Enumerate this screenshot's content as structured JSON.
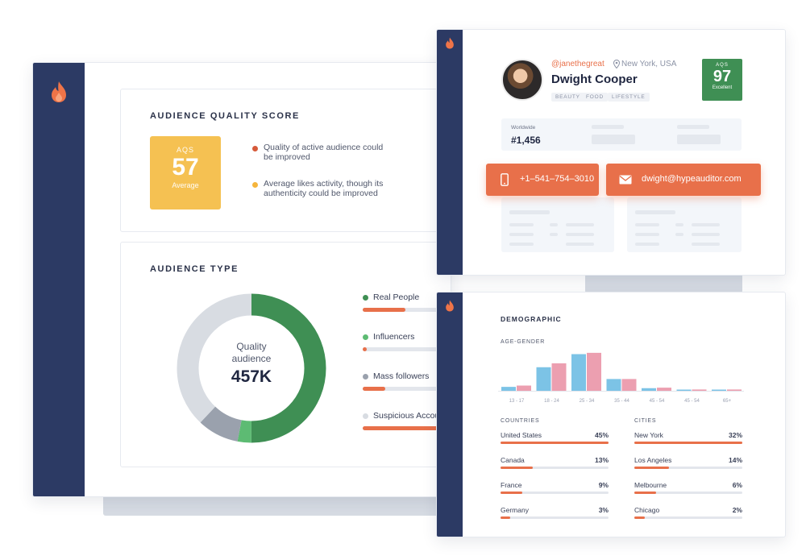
{
  "colors": {
    "sidebar": "#2c3a64",
    "accent_orange": "#e8704a",
    "aqs_yellow": "#f5c152",
    "aqs_green": "#3f8f54",
    "real_people": "#3f8f54",
    "influencers": "#5dbb73",
    "mass_followers": "#9aa1ad",
    "suspicious": "#d8dce2",
    "male_bar": "#7cc3e6",
    "female_bar": "#ec9fb0"
  },
  "quality": {
    "title": "AUDIENCE QUALITY SCORE",
    "aqs_label": "AQS",
    "aqs_value": "57",
    "aqs_grade": "Average",
    "bullets": [
      {
        "text": "Quality of active audience could be improved",
        "color": "#d65a3a"
      },
      {
        "text": "Average likes activity, though its authenticity could be improved",
        "color": "#f5b53c"
      }
    ]
  },
  "audience_type": {
    "title": "AUDIENCE TYPE",
    "center_label_1": "Quality",
    "center_label_2": "audience",
    "center_value": "457K",
    "donut": [
      {
        "name": "Real People",
        "fraction": 0.5,
        "color": "#3f8f54"
      },
      {
        "name": "Influencers",
        "fraction": 0.03,
        "color": "#5dbb73"
      },
      {
        "name": "Mass followers",
        "fraction": 0.09,
        "color": "#9aa1ad"
      },
      {
        "name": "Suspicious Accounts",
        "fraction": 0.38,
        "color": "#d8dce2"
      }
    ],
    "legend": [
      {
        "label": "Real People",
        "dot": "#3f8f54",
        "bar": 0.45
      },
      {
        "label": "Influencers",
        "dot": "#5dbb73",
        "bar": 0.04
      },
      {
        "label": "Mass followers",
        "dot": "#9aa1ad",
        "bar": 0.24
      },
      {
        "label": "Suspicious Accou",
        "dot": "#d8dce2",
        "bar": 0.98
      }
    ]
  },
  "profile": {
    "handle": "@janethegreat",
    "location": "New York, USA",
    "name": "Dwight Cooper",
    "tags": [
      "BEAUTY",
      "FOOD",
      "LIFESTYLE"
    ],
    "aqs_label": "AQS",
    "aqs_value": "97",
    "aqs_grade": "Excellent",
    "rank_label": "Worldwide",
    "rank_value": "#1,456",
    "phone": "+1–541–754–3010",
    "email": "dwight@hypeauditor.com"
  },
  "demographic": {
    "title": "DEMOGRAPHIC",
    "age_gender_label": "AGE-GENDER",
    "countries_label": "COUNTRIES",
    "cities_label": "CITIES",
    "countries": [
      {
        "name": "United States",
        "value": "45%",
        "fraction": 1.0
      },
      {
        "name": "Canada",
        "value": "13%",
        "fraction": 0.3
      },
      {
        "name": "France",
        "value": "9%",
        "fraction": 0.2
      },
      {
        "name": "Germany",
        "value": "3%",
        "fraction": 0.09
      }
    ],
    "cities": [
      {
        "name": "New York",
        "value": "32%",
        "fraction": 1.0
      },
      {
        "name": "Los Angeles",
        "value": "14%",
        "fraction": 0.32
      },
      {
        "name": "Melbourne",
        "value": "6%",
        "fraction": 0.2
      },
      {
        "name": "Chicago",
        "value": "2%",
        "fraction": 0.1
      }
    ]
  },
  "chart_data": {
    "type": "bar",
    "categories": [
      "13 - 17",
      "18 - 24",
      "25 - 34",
      "35 - 44",
      "45 - 54",
      "45 - 54",
      "65+"
    ],
    "series": [
      {
        "values": [
          1.5,
          9,
          14,
          4.5,
          1,
          0.3,
          0.3
        ]
      },
      {
        "values": [
          2,
          10.5,
          14.5,
          4.5,
          1.2,
          0.5,
          0.5
        ]
      }
    ],
    "ylim": [
      0,
      16
    ]
  }
}
